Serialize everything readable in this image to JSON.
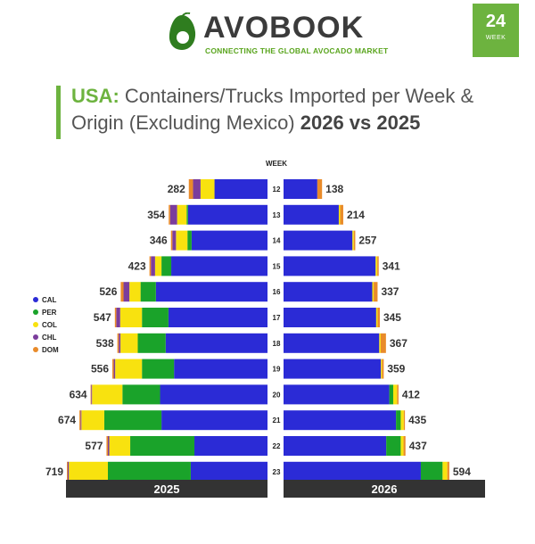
{
  "brand": {
    "name": "AVOBOOK",
    "tagline": "CONNECTING THE GLOBAL AVOCADO MARKET"
  },
  "week_badge": {
    "number": "24",
    "label": "WEEK"
  },
  "title": {
    "country": "USA:",
    "text": " Containers/Trucks Imported per Week & Origin (Excluding Mexico) ",
    "comparison": "2026 vs 2025"
  },
  "colors": {
    "CAL": "#2b2bd6",
    "PER": "#1aa32a",
    "COL": "#f8e20f",
    "CHL": "#7b3d9c",
    "DOM": "#e98b2a",
    "footer": "#333333"
  },
  "chart_data": {
    "type": "bar",
    "orientation": "horizontal-butterfly",
    "week_label": "WEEK",
    "categories": [
      "12",
      "13",
      "14",
      "15",
      "16",
      "17",
      "18",
      "19",
      "20",
      "21",
      "22",
      "23"
    ],
    "legend": [
      "CAL",
      "PER",
      "COL",
      "CHL",
      "DOM"
    ],
    "legend_position": "left",
    "panels": [
      {
        "name": "2025",
        "side": "left",
        "totals": [
          282,
          354,
          346,
          423,
          526,
          547,
          538,
          556,
          634,
          674,
          577,
          719
        ],
        "series": [
          {
            "name": "CAL",
            "values": [
              190,
              285,
              272,
              345,
              400,
              355,
              365,
              335,
              385,
              380,
              262,
              275
            ]
          },
          {
            "name": "PER",
            "values": [
              0,
              5,
              15,
              35,
              55,
              95,
              100,
              115,
              135,
              205,
              230,
              297
            ]
          },
          {
            "name": "COL",
            "values": [
              50,
              34,
              41,
              23,
              40,
              78,
              62,
              96,
              109,
              82,
              75,
              140
            ]
          },
          {
            "name": "CHL",
            "values": [
              27,
              25,
              13,
              15,
              21,
              14,
              6,
              5,
              3,
              3,
              5,
              4
            ]
          },
          {
            "name": "DOM",
            "values": [
              15,
              5,
              5,
              5,
              10,
              5,
              5,
              5,
              2,
              4,
              5,
              3
            ]
          }
        ]
      },
      {
        "name": "2026",
        "side": "right",
        "totals": [
          138,
          214,
          257,
          341,
          337,
          345,
          367,
          359,
          412,
          435,
          437,
          594
        ],
        "series": [
          {
            "name": "CAL",
            "values": [
              121,
              198,
              247,
              330,
              318,
              332,
              343,
              349,
              379,
              403,
              368,
              492
            ]
          },
          {
            "name": "PER",
            "values": [
              0,
              0,
              0,
              0,
              0,
              0,
              0,
              0,
              14,
              17,
              52,
              78
            ]
          },
          {
            "name": "COL",
            "values": [
              0,
              5,
              5,
              6,
              5,
              5,
              5,
              4,
              14,
              11,
              10,
              17
            ]
          },
          {
            "name": "CHL",
            "values": [
              0,
              0,
              0,
              0,
              0,
              0,
              0,
              0,
              0,
              0,
              0,
              0
            ]
          },
          {
            "name": "DOM",
            "values": [
              17,
              11,
              5,
              5,
              14,
              8,
              19,
              6,
              5,
              4,
              7,
              7
            ]
          }
        ]
      }
    ]
  }
}
